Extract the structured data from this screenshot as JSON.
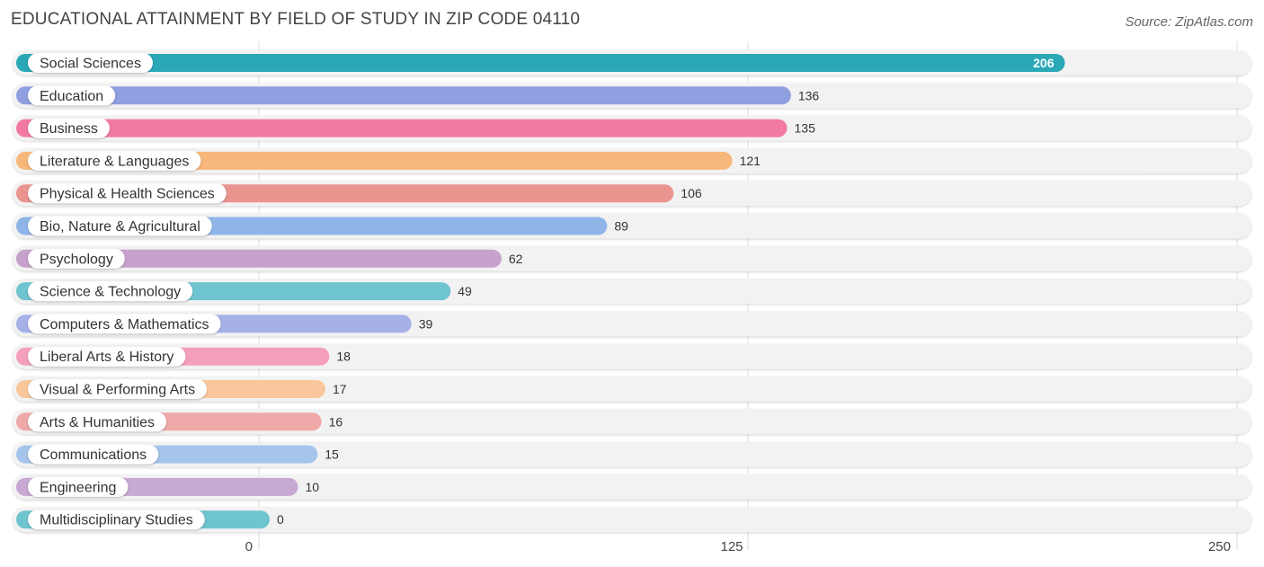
{
  "header": {
    "title": "EDUCATIONAL ATTAINMENT BY FIELD OF STUDY IN ZIP CODE 04110",
    "source": "Source: ZipAtlas.com"
  },
  "chart_data": {
    "type": "bar",
    "orientation": "horizontal",
    "title": "EDUCATIONAL ATTAINMENT BY FIELD OF STUDY IN ZIP CODE 04110",
    "xlabel": "",
    "ylabel": "",
    "xlim": [
      0,
      250
    ],
    "ticks": [
      0,
      125,
      250
    ],
    "tick_labels": [
      "0",
      "125",
      "250"
    ],
    "grid": true,
    "categories": [
      "Social Sciences",
      "Education",
      "Business",
      "Literature & Languages",
      "Physical & Health Sciences",
      "Bio, Nature & Agricultural",
      "Psychology",
      "Science & Technology",
      "Computers & Mathematics",
      "Liberal Arts & History",
      "Visual & Performing Arts",
      "Arts & Humanities",
      "Communications",
      "Engineering",
      "Multidisciplinary Studies"
    ],
    "values": [
      206,
      136,
      135,
      121,
      106,
      89,
      62,
      49,
      39,
      18,
      17,
      16,
      15,
      10,
      0
    ],
    "value_labels": [
      "206",
      "136",
      "135",
      "121",
      "106",
      "89",
      "62",
      "49",
      "39",
      "18",
      "17",
      "16",
      "15",
      "10",
      "0"
    ],
    "colors": [
      "#2aa8b8",
      "#8f9fe0",
      "#f27aa0",
      "#f8b77a",
      "#ea9490",
      "#8fb5e8",
      "#c6a1cc",
      "#6ec4cf",
      "#a6b1e8",
      "#f5a0bb",
      "#f9c79b",
      "#efa9a8",
      "#a5c4ec",
      "#c7a9d1",
      "#6ec4cf"
    ]
  }
}
